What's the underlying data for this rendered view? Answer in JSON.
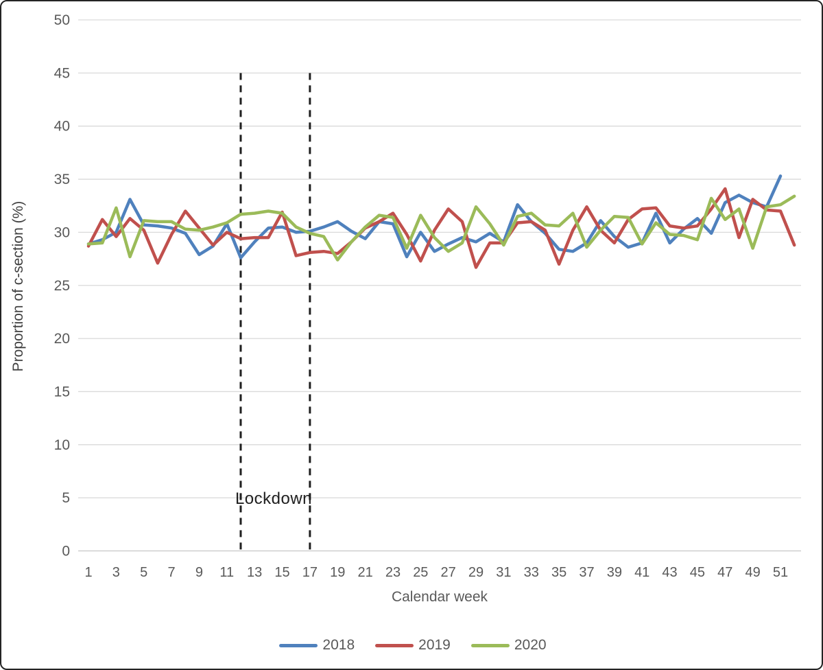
{
  "figure": {
    "y_axis_title": "Proportion of c-section (%)",
    "x_axis_title": "Calendar week",
    "lockdown_label": "Lockdown"
  },
  "legend": [
    {
      "label": "2018",
      "color": "#4F81BD"
    },
    {
      "label": "2019",
      "color": "#C0504D"
    },
    {
      "label": "2020",
      "color": "#9BBB59"
    }
  ],
  "colors": {
    "gridline": "#d9d9d9",
    "baseline": "#c6c6c6",
    "tick_text": "#595959",
    "dashed_line": "#1f1f1f"
  },
  "chart_data": {
    "type": "line",
    "title": "",
    "xlabel": "Calendar week",
    "ylabel": "Proportion of c-section (%)",
    "ylim": [
      0,
      50
    ],
    "grid": true,
    "legend_position": "bottom",
    "y_ticks": [
      0,
      5,
      10,
      15,
      20,
      25,
      30,
      35,
      40,
      45,
      50
    ],
    "x_tick_labels": [
      1,
      3,
      5,
      7,
      9,
      11,
      13,
      15,
      17,
      19,
      21,
      23,
      25,
      27,
      29,
      31,
      33,
      35,
      37,
      39,
      41,
      43,
      45,
      47,
      49,
      51
    ],
    "weeks": [
      1,
      2,
      3,
      4,
      5,
      6,
      7,
      8,
      9,
      10,
      11,
      12,
      13,
      14,
      15,
      16,
      17,
      18,
      19,
      20,
      21,
      22,
      23,
      24,
      25,
      26,
      27,
      28,
      29,
      30,
      31,
      32,
      33,
      34,
      35,
      36,
      37,
      38,
      39,
      40,
      41,
      42,
      43,
      44,
      45,
      46,
      47,
      48,
      49,
      50,
      51,
      52
    ],
    "lockdown": {
      "label": "Lockdown",
      "from_week": 12,
      "to_week": 17,
      "line_top_value": 45
    },
    "series": [
      {
        "name": "2018",
        "color": "#4F81BD",
        "values": [
          28.9,
          29.3,
          30.0,
          33.1,
          30.7,
          30.6,
          30.4,
          29.9,
          27.9,
          28.7,
          30.8,
          27.6,
          29.1,
          30.4,
          30.5,
          30.0,
          30.1,
          30.5,
          31.0,
          30.1,
          29.4,
          31.0,
          30.8,
          27.7,
          30.0,
          28.2,
          28.9,
          29.5,
          29.1,
          29.9,
          29.1,
          32.6,
          31.0,
          29.9,
          28.4,
          28.2,
          29.0,
          31.1,
          29.6,
          28.6,
          29.0,
          31.8,
          29.0,
          30.3,
          31.3,
          29.9,
          32.8,
          33.5,
          32.8,
          32.4,
          35.3,
          null
        ]
      },
      {
        "name": "2019",
        "color": "#C0504D",
        "values": [
          28.7,
          31.2,
          29.6,
          31.3,
          30.2,
          27.1,
          29.8,
          32.0,
          30.4,
          28.8,
          30.0,
          29.4,
          29.5,
          29.5,
          31.9,
          27.8,
          28.1,
          28.2,
          28.0,
          29.1,
          30.4,
          31.0,
          31.8,
          29.8,
          27.3,
          30.2,
          32.2,
          31.0,
          26.7,
          29.0,
          29.0,
          30.9,
          31.0,
          30.2,
          27.0,
          30.2,
          32.4,
          30.2,
          29.0,
          31.2,
          32.2,
          32.3,
          30.6,
          30.4,
          30.6,
          32.2,
          34.1,
          29.5,
          33.1,
          32.1,
          32.0,
          28.8
        ]
      },
      {
        "name": "2020",
        "color": "#9BBB59",
        "values": [
          28.9,
          29.0,
          32.3,
          27.7,
          31.1,
          31.0,
          31.0,
          30.3,
          30.2,
          30.5,
          30.9,
          31.7,
          31.8,
          32.0,
          31.8,
          30.5,
          29.9,
          29.6,
          27.4,
          29.1,
          30.5,
          31.6,
          31.4,
          28.5,
          31.6,
          29.5,
          28.2,
          29.0,
          32.4,
          30.8,
          28.8,
          31.5,
          31.8,
          30.7,
          30.6,
          31.8,
          28.6,
          30.2,
          31.5,
          31.4,
          28.9,
          30.9,
          29.8,
          29.7,
          29.3,
          33.2,
          31.2,
          32.2,
          28.5,
          32.4,
          32.6,
          33.4
        ]
      }
    ]
  }
}
